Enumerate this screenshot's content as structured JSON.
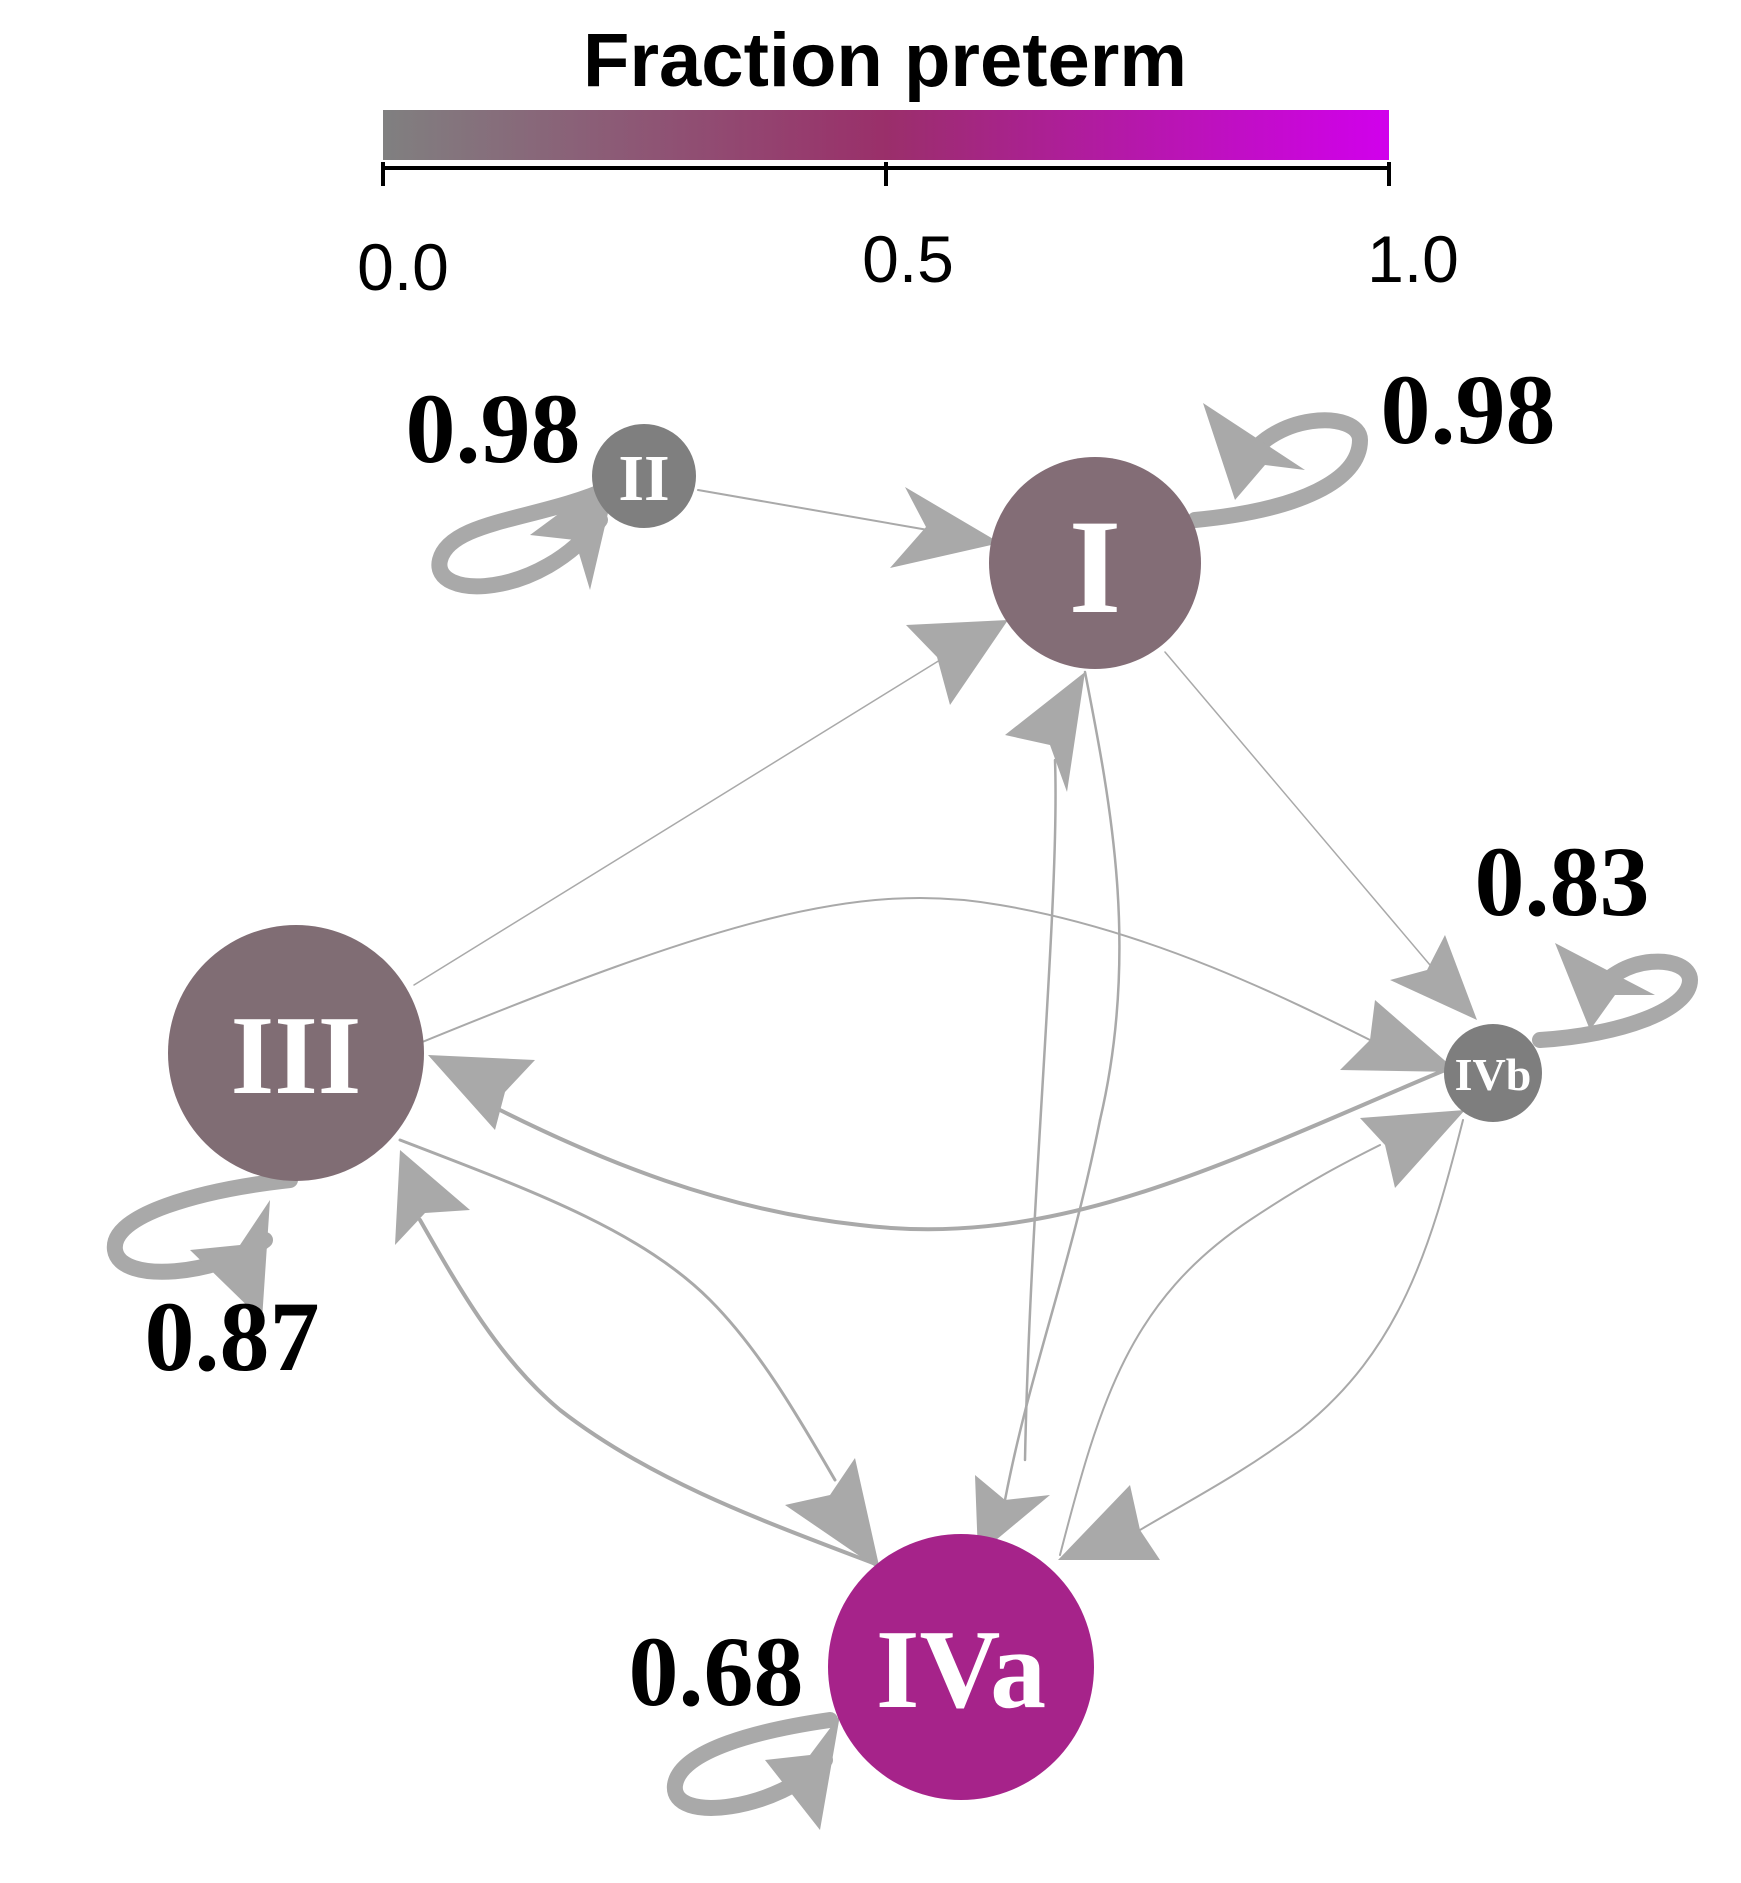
{
  "legend": {
    "title": "Fraction preterm",
    "ticks": [
      "0.0",
      "0.5",
      "1.0"
    ],
    "color_low": "#808080",
    "color_mid": "#9a2f6a",
    "color_high": "#d100ec"
  },
  "nodes": [
    {
      "id": "I",
      "label": "I",
      "fraction_preterm": 0.12,
      "color": "#836d76",
      "self_loop": "0.98"
    },
    {
      "id": "II",
      "label": "II",
      "fraction_preterm": 0.02,
      "color": "#7f7f7f",
      "self_loop": "0.98"
    },
    {
      "id": "III",
      "label": "III",
      "fraction_preterm": 0.13,
      "color": "#806d74",
      "self_loop": "0.87"
    },
    {
      "id": "IVa",
      "label": "IVa",
      "fraction_preterm": 0.62,
      "color": "#a6238a",
      "self_loop": "0.68"
    },
    {
      "id": "IVb",
      "label": "IVb",
      "fraction_preterm": 0.0,
      "color": "#7e7e7e",
      "self_loop": "0.83"
    }
  ],
  "edges": [
    {
      "from": "II",
      "to": "I"
    },
    {
      "from": "III",
      "to": "I"
    },
    {
      "from": "IVa",
      "to": "I"
    },
    {
      "from": "I",
      "to": "IVa"
    },
    {
      "from": "I",
      "to": "IVb"
    },
    {
      "from": "III",
      "to": "IVb"
    },
    {
      "from": "IVb",
      "to": "III"
    },
    {
      "from": "III",
      "to": "IVa"
    },
    {
      "from": "IVa",
      "to": "III"
    },
    {
      "from": "IVa",
      "to": "IVb"
    },
    {
      "from": "IVb",
      "to": "IVa"
    }
  ]
}
